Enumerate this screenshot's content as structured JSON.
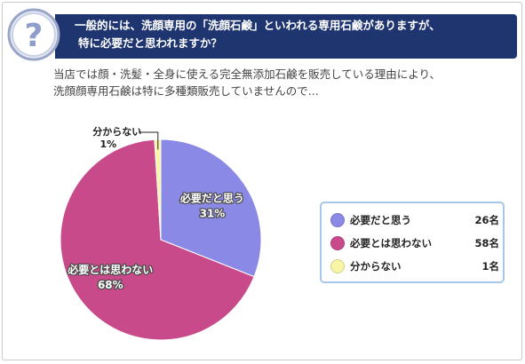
{
  "question": {
    "line1": "一般的には、洗顔専用の「洗顔石鹸」といわれる専用石鹸がありますが、",
    "line2": "特に必要だと思われますか？",
    "icon": "question-mark-icon",
    "banner_color": "#1f3570"
  },
  "intro": {
    "line1": "当店では顔・洗髪・全身に使える完全無添加石鹸を販売している理由により、",
    "line2": "洗顔顔専用石鹸は特に多種類販売していませんので..."
  },
  "chart_data": {
    "type": "pie",
    "slices": [
      {
        "label": "必要だと思う",
        "percent": 31,
        "percent_text": "31%",
        "count_text": "26名",
        "color": "#8a89e6"
      },
      {
        "label": "必要とは思わない",
        "percent": 68,
        "percent_text": "68%",
        "count_text": "58名",
        "color": "#c94a8a"
      },
      {
        "label": "分からない",
        "percent": 1,
        "percent_text": "1%",
        "count_text": "1名",
        "color": "#faf5a6"
      }
    ],
    "start": "12 o'clock",
    "direction": "clockwise",
    "legend_position": "right"
  },
  "colors": {
    "legend_border": "#a6c8e8",
    "frame_border": "#c9c9c9"
  }
}
